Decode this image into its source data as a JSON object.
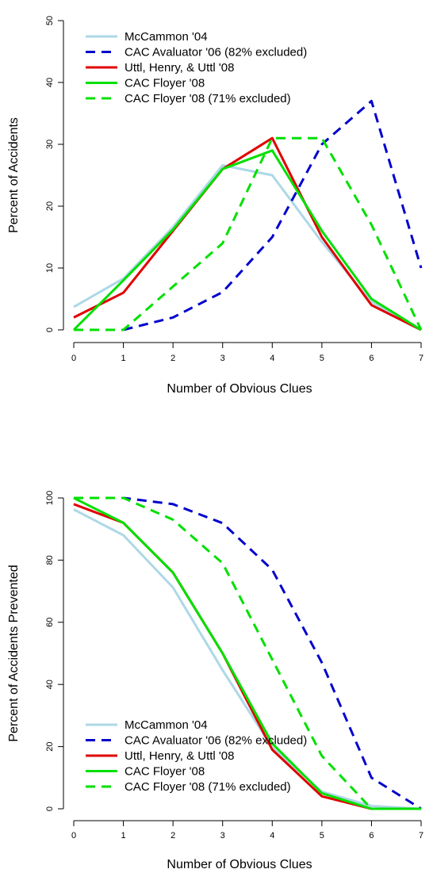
{
  "chart_data": [
    {
      "type": "line",
      "xlabel": "Number of Obvious Clues",
      "ylabel": "Percent of Accidents",
      "xlim": [
        0,
        7
      ],
      "ylim": [
        0,
        50
      ],
      "xticks": [
        "0",
        "1",
        "2",
        "3",
        "4",
        "5",
        "6",
        "7"
      ],
      "yticks": [
        "0",
        "10",
        "20",
        "30",
        "40",
        "50"
      ],
      "grid": false,
      "legend_position": "top-left",
      "series": [
        {
          "name": "McCammon '04",
          "color": "#add8e6",
          "dash": "solid",
          "points": [
            [
              0,
              3.7
            ],
            [
              1,
              8.3
            ],
            [
              2,
              16.6
            ],
            [
              3,
              26.6
            ],
            [
              4,
              25
            ],
            [
              5,
              14.2
            ],
            [
              6,
              4.5
            ],
            [
              7,
              0
            ]
          ]
        },
        {
          "name": "CAC Avaluator '06 (82% excluded)",
          "color": "#0000cd",
          "dash": "dashed",
          "points": [
            [
              1,
              0
            ],
            [
              2,
              2
            ],
            [
              3,
              6.1
            ],
            [
              4,
              15
            ],
            [
              5,
              30
            ],
            [
              6,
              37
            ],
            [
              7,
              10
            ]
          ]
        },
        {
          "name": "Uttl, Henry, & Uttl '08",
          "color": "#e00000",
          "dash": "solid",
          "points": [
            [
              0,
              2
            ],
            [
              1,
              6
            ],
            [
              2,
              16
            ],
            [
              3,
              26
            ],
            [
              4,
              31
            ],
            [
              5,
              15
            ],
            [
              6,
              4
            ],
            [
              7,
              0
            ]
          ]
        },
        {
          "name": "CAC Floyer '08",
          "color": "#00e000",
          "dash": "solid",
          "points": [
            [
              0,
              0
            ],
            [
              1,
              8
            ],
            [
              2,
              16.2
            ],
            [
              3,
              26
            ],
            [
              4,
              29
            ],
            [
              5,
              16
            ],
            [
              6,
              5
            ],
            [
              7,
              0
            ]
          ]
        },
        {
          "name": "CAC Floyer '08 (71% excluded)",
          "color": "#00e000",
          "dash": "dashed",
          "points": [
            [
              0,
              0
            ],
            [
              1,
              0
            ],
            [
              2,
              7
            ],
            [
              3,
              14
            ],
            [
              4,
              31
            ],
            [
              5,
              31
            ],
            [
              6,
              17
            ],
            [
              7,
              0
            ]
          ]
        }
      ]
    },
    {
      "type": "line",
      "xlabel": "Number of Obvious Clues",
      "ylabel": "Percent of Accidents Prevented",
      "xlim": [
        0,
        7
      ],
      "ylim": [
        0,
        100
      ],
      "xticks": [
        "0",
        "1",
        "2",
        "3",
        "4",
        "5",
        "6",
        "7"
      ],
      "yticks": [
        "0",
        "20",
        "40",
        "60",
        "80",
        "100"
      ],
      "grid": false,
      "legend_position": "bottom-left",
      "series": [
        {
          "name": "McCammon '04",
          "color": "#add8e6",
          "dash": "solid",
          "points": [
            [
              0,
              96.3
            ],
            [
              1,
              88
            ],
            [
              2,
              71.2
            ],
            [
              3,
              44.6
            ],
            [
              4,
              19.7
            ],
            [
              5,
              5.5
            ],
            [
              6,
              0.9
            ],
            [
              7,
              0
            ]
          ]
        },
        {
          "name": "CAC Avaluator '06 (82% excluded)",
          "color": "#0000cd",
          "dash": "dashed",
          "points": [
            [
              0,
              100
            ],
            [
              1,
              100
            ],
            [
              2,
              98
            ],
            [
              3,
              91.9
            ],
            [
              4,
              76.9
            ],
            [
              5,
              47
            ],
            [
              6,
              10
            ],
            [
              7,
              0
            ]
          ]
        },
        {
          "name": "Uttl, Henry, & Uttl '08",
          "color": "#e00000",
          "dash": "solid",
          "points": [
            [
              0,
              98
            ],
            [
              1,
              92
            ],
            [
              2,
              76
            ],
            [
              3,
              50
            ],
            [
              4,
              19
            ],
            [
              5,
              4
            ],
            [
              6,
              0
            ],
            [
              7,
              0
            ]
          ]
        },
        {
          "name": "CAC Floyer '08",
          "color": "#00e000",
          "dash": "solid",
          "points": [
            [
              0,
              100
            ],
            [
              1,
              92
            ],
            [
              2,
              76
            ],
            [
              3,
              50
            ],
            [
              4,
              21
            ],
            [
              5,
              5
            ],
            [
              6,
              0
            ],
            [
              7,
              0
            ]
          ]
        },
        {
          "name": "CAC Floyer '08 (71% excluded)",
          "color": "#00e000",
          "dash": "dashed",
          "points": [
            [
              0,
              100
            ],
            [
              1,
              100
            ],
            [
              2,
              93
            ],
            [
              3,
              79
            ],
            [
              4,
              48
            ],
            [
              5,
              17
            ],
            [
              6,
              0
            ],
            [
              7,
              0
            ]
          ]
        }
      ]
    }
  ]
}
